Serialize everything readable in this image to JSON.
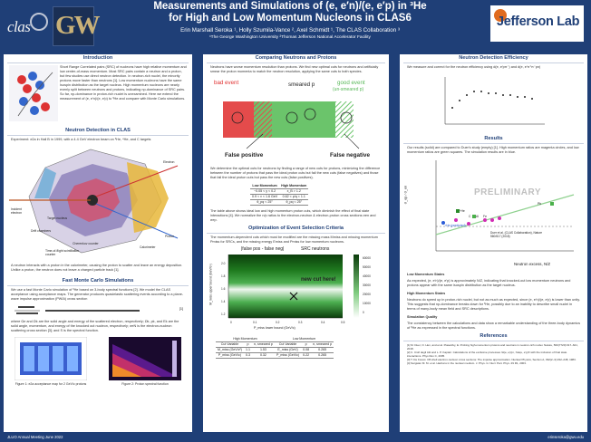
{
  "header": {
    "title_line1": "Measurements and Simulations of (e, e′n)/(e, e′p) in ³He",
    "title_line2": "for High and Low Momentum Nucleons in CLAS6",
    "authors": "Erin Marshall Seroka ¹, Holly Szumila-Vance ², Axel Schmidt ¹, The CLAS Collaboration ³",
    "affiliations": "¹The George Washington University    ²Thomas Jefferson National Accelerator Facility",
    "logo_clas": "clas",
    "logo_gw": "GW",
    "logo_jlab": "Jefferson Lab"
  },
  "col1": {
    "intro_head": "Introduction",
    "intro_text": "Short Range Correlated pairs (SRC) of nucleons have high relative momentum and low center-of-mass momentum. Most SRC pairs contain a neutron and a proton, but few studies use direct neutron detection. In neutron-rich nuclei, the minority protons move faster than neutrons [1]. Low momentum nucleons have the same Isospin distribution as the target nucleus. High momentum nucleons are nearly evenly split between neutrons and protons, indicating np-dominance of SRC pairs. So far, np-dominance in proton-rich nuclei is unexamined. Here we extend the measurement of (e, e′n)/(e, e′p) to ³He and compare with Monte Carlo simulations.",
    "detect_head": "Neutron Detection in CLAS",
    "detect_text": "Experiment: e2a in Hall B in 1999, with a 4.4 GeV electron beam on ³He, ⁴He, and C targets",
    "det_labels": [
      "Incident electron",
      "Target nucleus",
      "Drift chambers",
      "Cherenkov counter",
      "Time-of-flight scintillation counter",
      "Calorimeter",
      "Electron",
      "Proton"
    ],
    "neutron_text": "A neutron interacts with a proton in the calorimeter, causing the proton to scatter and leave an energy deposition. Unlike a proton, the neutron does not leave a charged particle track [1].",
    "fmc_head": "Fast Monte Carlo Simulations",
    "fmc_text": "We use a fast Monte Carlo simulation of ³He based on 3-body spectral functions [2]. We model the CLAS acceptance using acceptance maps. The generator produces quasielastic scattering events according to a plane-wave impulse approximation (PWIA) cross section",
    "fmc_eq_num": "[1]",
    "fmc_text2": "where Ωe and Ωk are the solid angle and energy of the scattered electron, respectively; Ωk, pk, and Ek are the solid angle, momentum, and energy of the knocked out nucleon, respectively; σeN is the electron-nucleon scattering cross section [3]; and S is the spectral function.",
    "fig1_cap": "Figure 1: e2a acceptance map for 2 GeV/c protons",
    "fig2_cap": "Figure 2: Proton spectral function"
  },
  "col2": {
    "cmp_head": "Comparing Neutrons and Protons",
    "cmp_text": "Neutrons have worse momentum resolution than protons. We find new optimal cuts for neutrons and artificially smear the proton momenta to match the neutron resolution, applying the same cuts to both species.",
    "bad_event": "bad event",
    "smeared_p": "smeared p",
    "good_event": "good event",
    "good_event2": "(un-smeared p)",
    "false_positive": "False positive",
    "false_negative": "False negative",
    "cmp_text2": "We determine the optimal cuts for neutrons by finding a range of new cuts for protons, minimizing the difference between the number of protons that pass the ideal proton cuts but fail the new cuts (false negatives) and those that fail the ideal proton cuts but pass the new cuts (false positives).",
    "cuts_table": {
      "headers": [
        "Low Momentum",
        "High Momentum"
      ],
      "rows": [
        [
          "−0.05 < y < 0.2",
          "x_B > 1.2"
        ],
        [
          "0.9 < ν < 1.6 GeV",
          "0.62 < p/q < 1.1"
        ],
        [
          "θ_pq < 25°",
          "θ_pq < 25°"
        ]
      ]
    },
    "cmp_text3": "The table above shows ideal low and high momentum proton cuts, which diminish the effect of final state interactions [4]. We normalize the n/p ratios to the electron-neutron & electron-proton cross sections σen and σep.",
    "opt_head": "Optimization of Event Selection Criteria",
    "opt_text": "The momentum-dependent cuts which must be modified are the missing mass Mmiss and missing momentum Pmiss for SRCs, and the missing energy Emiss and Pmiss for low momentum nucleons.",
    "heatmap": {
      "title_left": "|false pos - false neg|",
      "title_right": "SRC neutrons",
      "annotation": "new cut here!",
      "xlabel": "P_miss lower bound (GeV/c)",
      "ylabel": "M_miss upper bound (GeV/c²)",
      "xticks": [
        "0",
        "0.1",
        "0.2",
        "0.3",
        "0.4",
        "0.5"
      ],
      "yticks": [
        "1.2",
        "1.4",
        "1.6",
        "1.8",
        "2.0"
      ],
      "cbar_ticks": [
        "60000",
        "50000",
        "40000",
        "30000",
        "20000",
        "10000",
        "0"
      ]
    },
    "res_table": {
      "head_high": "High Momentum",
      "head_low": "Low Momentum",
      "sub": [
        "Cut Variable",
        "p",
        "n, smeared p",
        "Cut Variable",
        "p",
        "n, smeared p"
      ],
      "rows": [
        [
          "M_miss (GeV/c²)",
          "1.1",
          "1.53",
          "E_miss (GeV)",
          "0.08",
          "0.265"
        ],
        [
          "P_miss (GeV/c)",
          "0.3",
          "0.32",
          "P_miss (GeV/c)",
          "0.22",
          "0.265"
        ]
      ]
    }
  },
  "col3": {
    "eff_head": "Neutron Detection Efficiency",
    "eff_text": "We measure and correct for the neutron efficiency using d(e, e′pπ⁻) and d(e, e′π⁺π⁻pn)",
    "results_head": "Results",
    "results_text": "Our results (solid) are compared to Duer's study (empty) [1]. High momentum ratios are magenta circles, and low momentum ratios are green squares. The simulation results are in blue.",
    "preliminary": "PRELIMINARY",
    "plot_xlabel": "Neutron excess, N/Z",
    "plot_ylabel": "σ_ep / σ_en",
    "plot_xticks": [
      "0",
      "0.2",
      "0.4",
      "0.6",
      "0.8",
      "1",
      "1.2",
      "1.4"
    ],
    "plot_yticks": [
      "0",
      "0.5",
      "1",
      "1.5",
      "2",
      "2.5",
      "3",
      "3.5"
    ],
    "plot_annots": [
      "³He (predicted)",
      "⁴He",
      "C",
      "Al",
      "Fe",
      "Pb"
    ],
    "plot_legend": "Duer et al. (CLAS Collaboration), Nature 560/617 (2018)",
    "low_head": "Low Momentum States",
    "low_text": "As expected, (e, e′n)/(e, e′p) is approximately N/Z, indicating that knocked-out low momentum neutrons and protons appear with the same isospin distribution as the target nucleus.",
    "high_head": "High Momentum States",
    "high_text": "Neutrons do speed up in proton-rich nuclei, but not as much as expected, since (e, e′n)/(e, e′p) is lower than unity. This suggests that np-dominance breaks down for ³He, possibly due to an inability to describe small nuclei in terms of many-body mean field and SRC descriptions.",
    "sim_head": "Simulation Quality",
    "sim_text": "The consistency between the calculations and data show a remarkable understanding of the three-body dynamics of ³He as expressed in the spectral functions.",
    "refs_head": "References",
    "refs": [
      "[1] M. Duer, O. Hen, and et al. Piasetzky, E. Probing high-momentum protons and neutrons in neutron-rich nuclei. Nature, 560(7720):617–621, 2018.",
      "[2] C. Ciofi degli Atti and L. P. Kaptari. Calculations of the exclusive processes ²H(e, e′p)n, ³He(e, e′p)X with the inclusion of final state interactions. Phys Rev C, 2005.",
      "[3] T. De Forest. Off-shell electron-nucleon cross sections: The impulse approximation. Nuclear Physics, Section A, 392(2–3):232–248, 1983.",
      "[4] Sargsian M. M. et al. Hadrons in the nuclear medium. J. Phys. G: Nucl. Part. Phys. 29 R1, 2003."
    ]
  },
  "footer": {
    "left": "JLUO Annual Meeting June 2022",
    "right": "erinseroka@gwu.edu"
  }
}
